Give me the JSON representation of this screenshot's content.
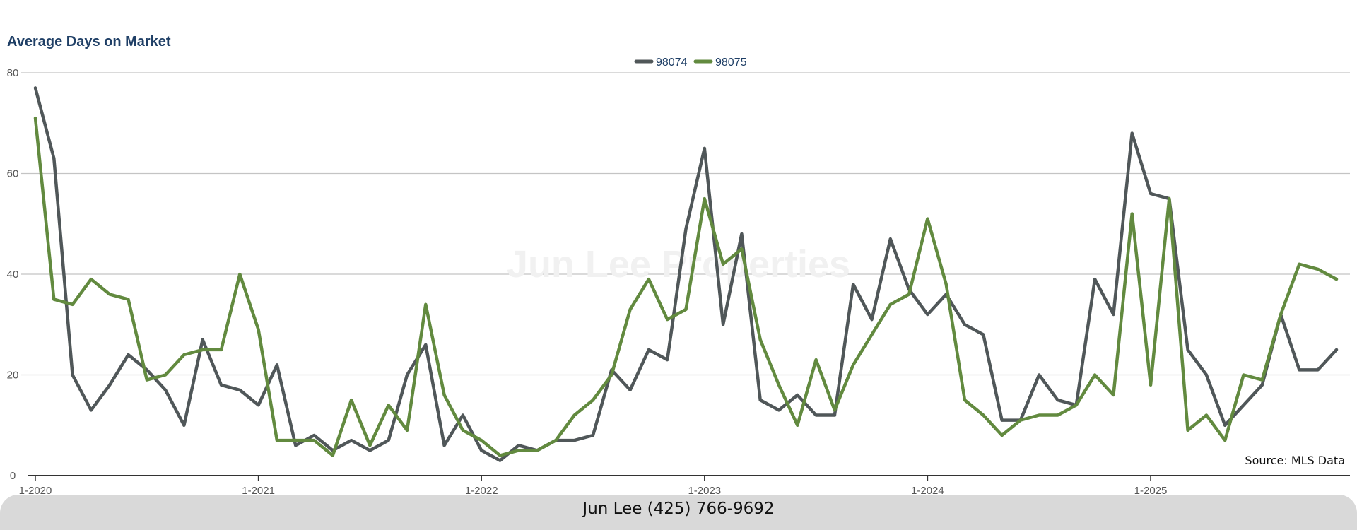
{
  "chart_data": {
    "type": "line",
    "title": "Average Days on Market",
    "x_tick_labels": [
      "1-2020",
      "1-2021",
      "1-2022",
      "1-2023",
      "1-2024",
      "1-2025"
    ],
    "x_start": "2020-01",
    "x_end": "2025-12",
    "ylim": [
      0,
      80
    ],
    "y_ticks": [
      0,
      20,
      40,
      60,
      80
    ],
    "grid": true,
    "legend_position": "top-center",
    "watermark": "Jun Lee Properties",
    "source": "Source: MLS Data",
    "series": [
      {
        "name": "98074",
        "color": "#505759",
        "values": [
          77,
          63,
          20,
          13,
          18,
          24,
          21,
          17,
          10,
          27,
          18,
          17,
          14,
          22,
          6,
          8,
          5,
          7,
          5,
          7,
          20,
          26,
          6,
          12,
          5,
          3,
          6,
          5,
          7,
          7,
          8,
          21,
          17,
          25,
          23,
          49,
          65,
          30,
          48,
          15,
          13,
          16,
          12,
          12,
          38,
          31,
          47,
          37,
          32,
          36,
          30,
          28,
          11,
          11,
          20,
          15,
          14,
          39,
          32,
          68,
          56,
          55,
          25,
          20,
          10,
          14,
          18,
          32,
          21,
          21,
          25
        ]
      },
      {
        "name": "98075",
        "color": "#628a3f",
        "values": [
          71,
          35,
          34,
          39,
          36,
          35,
          19,
          20,
          24,
          25,
          25,
          40,
          29,
          7,
          7,
          7,
          4,
          15,
          6,
          14,
          9,
          34,
          16,
          9,
          7,
          4,
          5,
          5,
          7,
          12,
          15,
          20,
          33,
          39,
          31,
          33,
          55,
          42,
          45,
          27,
          18,
          10,
          23,
          13,
          22,
          28,
          34,
          36,
          51,
          38,
          15,
          12,
          8,
          11,
          12,
          12,
          14,
          20,
          16,
          52,
          18,
          55,
          9,
          12,
          7,
          20,
          19,
          32,
          42,
          41,
          39
        ]
      }
    ]
  },
  "footer": {
    "contact": "Jun Lee (425) 766-9692"
  }
}
